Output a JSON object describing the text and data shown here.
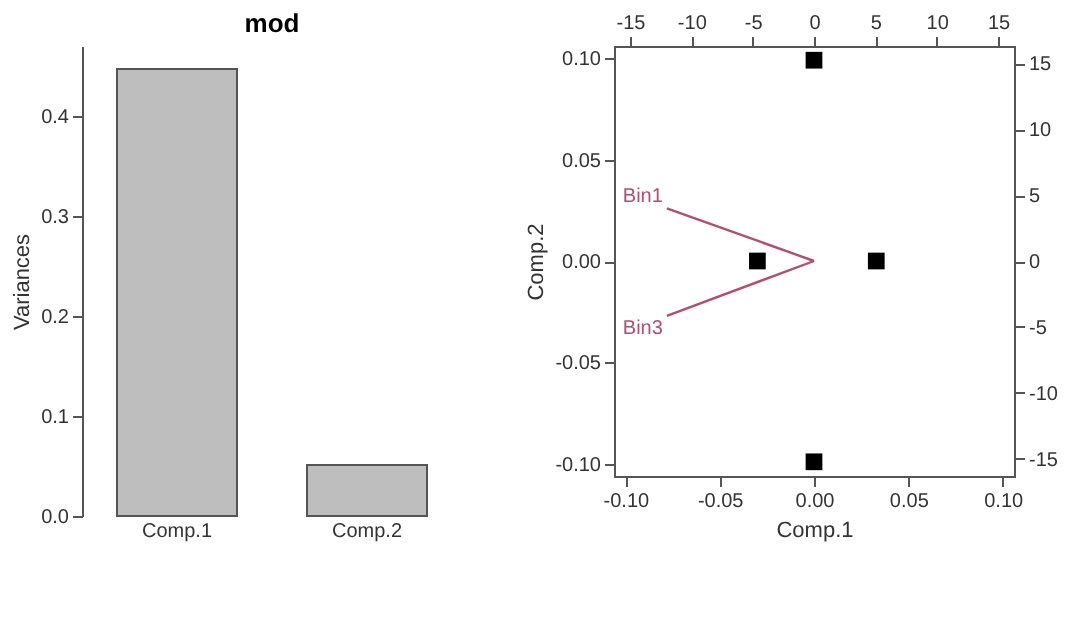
{
  "chart_data": [
    {
      "type": "bar",
      "title": "mod",
      "ylabel": "Variances",
      "categories": [
        "Comp.1",
        "Comp.2"
      ],
      "values": [
        0.447,
        0.051
      ],
      "color": "#bebebe",
      "ylim": [
        0,
        0.47
      ],
      "yticks": [
        {
          "value": 0,
          "label": "0.0"
        },
        0.1,
        0.2,
        0.3,
        0.4
      ]
    },
    {
      "type": "scatter",
      "xlabel": "Comp.1",
      "ylabel": "Comp.2",
      "xlim": [
        -0.106,
        0.106
      ],
      "xticks": [
        {
          "value": -0.1,
          "label": "-0.10"
        },
        -0.05,
        {
          "value": 0,
          "label": "0.00"
        },
        0.05,
        {
          "value": 0.1,
          "label": "0.10"
        }
      ],
      "ylim": [
        -0.106,
        0.106
      ],
      "yticks": [
        {
          "value": -0.1,
          "label": "-0.10"
        },
        -0.05,
        {
          "value": 0,
          "label": "0.00"
        },
        0.05,
        {
          "value": 0.1,
          "label": "0.10"
        }
      ],
      "x2lim": [
        -16.3,
        16.3
      ],
      "x2ticks": [
        -15,
        -10,
        -5,
        0,
        5,
        10,
        15
      ],
      "y2lim": [
        -16.3,
        16.3
      ],
      "y2ticks": [
        -15,
        -10,
        -5,
        0,
        5,
        10,
        15
      ],
      "series": [
        {
          "type": "scatter",
          "marker": "square",
          "color": "#000000",
          "x": [
            0,
            0,
            -0.03,
            0.033
          ],
          "values": [
            0.099,
            -0.099,
            0,
            0
          ]
        },
        {
          "type": "line",
          "color": "#b0506e",
          "x": [
            0,
            -0.078
          ],
          "values": [
            0,
            0.026
          ]
        },
        {
          "type": "line",
          "color": "#b0506e",
          "x": [
            0,
            -0.078
          ],
          "values": [
            0,
            -0.027
          ]
        }
      ],
      "annotations": [
        "Bin1",
        "Bin3"
      ]
    }
  ]
}
